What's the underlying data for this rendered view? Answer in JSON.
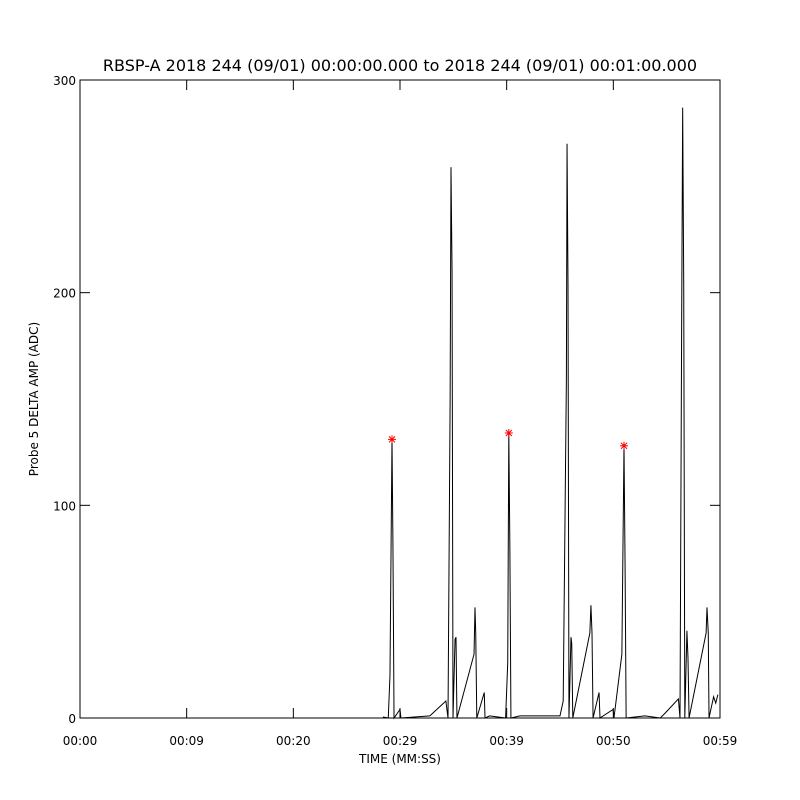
{
  "chart_data": {
    "type": "line",
    "title": "RBSP-A 2018 244 (09/01) 00:00:00.000 to 2018 244 (09/01) 00:01:00.000",
    "x_label": "TIME (MM:SS)",
    "y_label": "Probe 5 DELTA AMP (ADC)",
    "xlim": [
      0,
      60
    ],
    "xticks": [
      {
        "value": 0,
        "label": "00:00"
      },
      {
        "value": 10,
        "label": "00:09"
      },
      {
        "value": 20,
        "label": "00:20"
      },
      {
        "value": 30,
        "label": "00:29"
      },
      {
        "value": 40,
        "label": "00:39"
      },
      {
        "value": 50,
        "label": "00:50"
      },
      {
        "value": 60,
        "label": "00:59"
      }
    ],
    "ylim": [
      0,
      300
    ],
    "yticks": [
      0,
      100,
      200,
      300
    ],
    "x": [
      28.4,
      28.9,
      29.06,
      29.25,
      29.34,
      29.44,
      30.0,
      30.09,
      32.8,
      34.3,
      34.5,
      34.7,
      34.78,
      34.88,
      34.97,
      35.16,
      35.25,
      35.34,
      36.94,
      37.03,
      37.1,
      37.2,
      37.9,
      37.97,
      38.4,
      39.9,
      40.1,
      40.2,
      40.3,
      40.4,
      41.25,
      43.1,
      45.0,
      45.3,
      45.6,
      45.66,
      45.75,
      45.84,
      46.03,
      46.1,
      46.2,
      47.8,
      47.9,
      48.0,
      48.1,
      48.66,
      48.75,
      49.97,
      50.06,
      50.8,
      51.0,
      51.1,
      51.2,
      52.97,
      54.4,
      54.8,
      56.1,
      56.25,
      56.4,
      56.5,
      56.6,
      56.7,
      56.9,
      57.0,
      57.1,
      58.7,
      58.78,
      58.9,
      58.97,
      59.4,
      59.6,
      59.8
    ],
    "series": [
      {
        "color": "#000000",
        "values": [
          0.5,
          0,
          20,
          131,
          80,
          0,
          4,
          0,
          1,
          8,
          0,
          150,
          259,
          210,
          0,
          37,
          38,
          0,
          30,
          52,
          40,
          0,
          12,
          0,
          1,
          0,
          26,
          134,
          80,
          0,
          1,
          1,
          1,
          8,
          160,
          270,
          204,
          0,
          38,
          35,
          0,
          40,
          53,
          40,
          0,
          12,
          0,
          4,
          0,
          30,
          128,
          72,
          0,
          1,
          0,
          2,
          9,
          0,
          180,
          287,
          203,
          0,
          41,
          28,
          0,
          40,
          52,
          40,
          0,
          10,
          7,
          11
        ]
      }
    ],
    "markers": {
      "color": "#ff0000",
      "x": [
        29.25,
        40.2,
        51.0
      ],
      "y": [
        131,
        134,
        128
      ]
    }
  }
}
